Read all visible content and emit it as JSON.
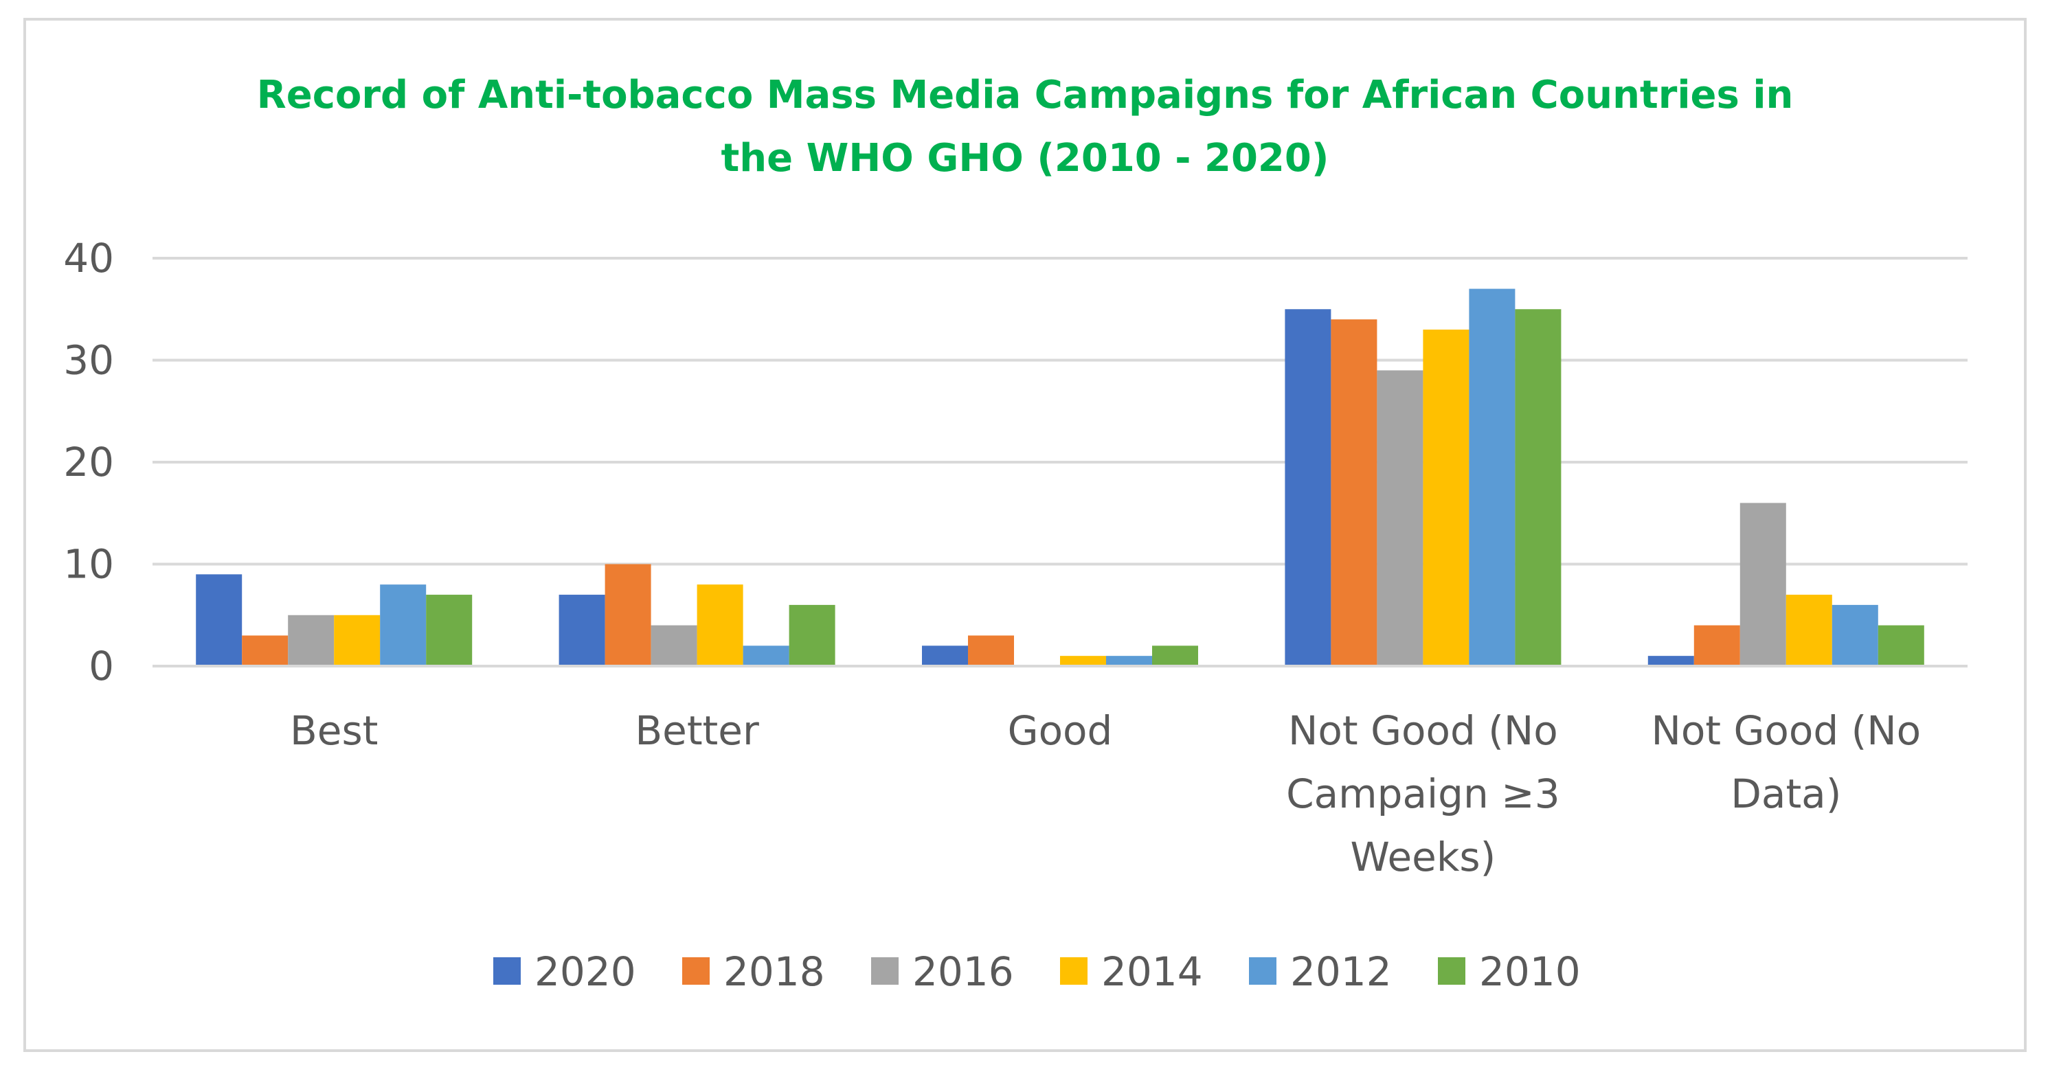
{
  "chart_data": {
    "type": "bar",
    "title_lines": [
      "Record of Anti-tobacco Mass Media Campaigns for African Countries in",
      "the WHO GHO (2010 - 2020)"
    ],
    "title_color": "#00b050",
    "categories": [
      [
        "Best"
      ],
      [
        "Better"
      ],
      [
        "Good"
      ],
      [
        "Not Good (No",
        "Campaign ≥3",
        "Weeks)"
      ],
      [
        "Not Good (No",
        "Data)"
      ]
    ],
    "category_names": [
      "Best",
      "Better",
      "Good",
      "Not Good (No Campaign ≥3 Weeks)",
      "Not Good (No Data)"
    ],
    "series": [
      {
        "name": "2020",
        "color": "#4472c4",
        "values": [
          9,
          7,
          2,
          35,
          1
        ]
      },
      {
        "name": "2018",
        "color": "#ed7d31",
        "values": [
          3,
          10,
          3,
          34,
          4
        ]
      },
      {
        "name": "2016",
        "color": "#a5a5a5",
        "values": [
          5,
          4,
          0,
          29,
          16
        ]
      },
      {
        "name": "2014",
        "color": "#ffc000",
        "values": [
          5,
          8,
          1,
          33,
          7
        ]
      },
      {
        "name": "2012",
        "color": "#5b9bd5",
        "values": [
          8,
          2,
          1,
          37,
          6
        ]
      },
      {
        "name": "2010",
        "color": "#70ad47",
        "values": [
          7,
          6,
          2,
          35,
          4
        ]
      }
    ],
    "yticks": [
      "0",
      "10",
      "20",
      "30",
      "40"
    ],
    "ylim": [
      0,
      40
    ],
    "xlabel": "",
    "ylabel": "",
    "grid": true,
    "legend_position": "bottom"
  }
}
